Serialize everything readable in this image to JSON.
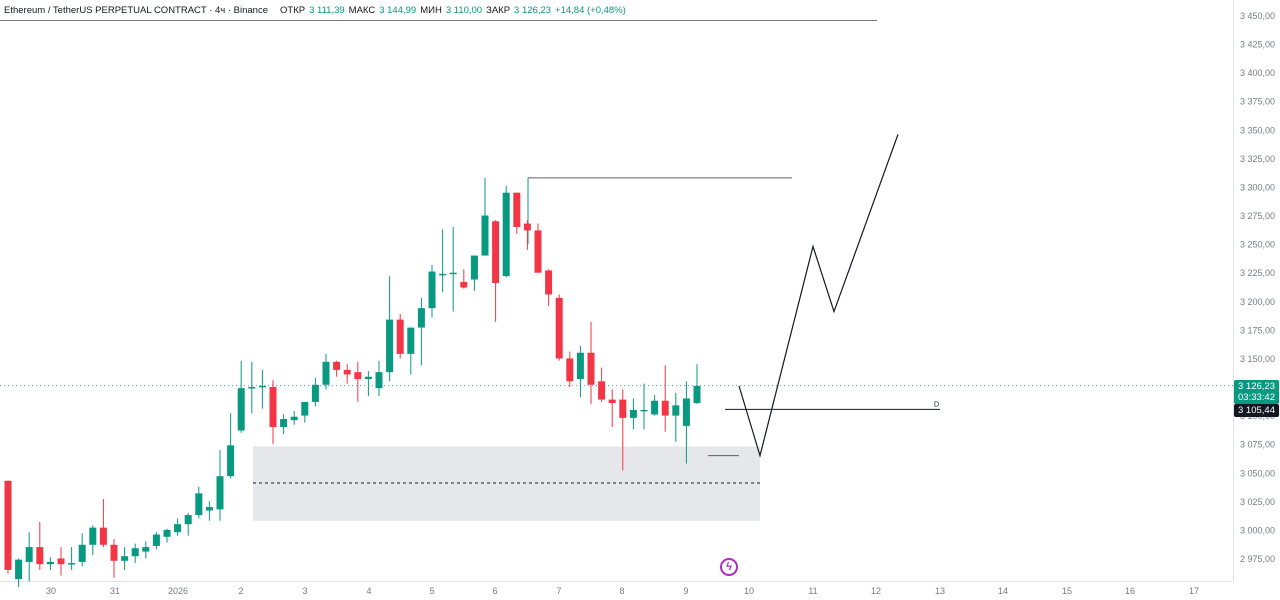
{
  "header": {
    "symbol": "Ethereum / TetherUS PERPETUAL CONTRACT · 4ч · Binance",
    "open_label": "ОТКР",
    "open_value": "3 111,39",
    "high_label": "МАКС",
    "high_value": "3 144,99",
    "low_label": "МИН",
    "low_value": "3 110,00",
    "close_label": "ЗАКР",
    "close_value": "3 126,23",
    "change": "+14,84 (+0,48%)"
  },
  "badges": {
    "last_price": "3 126,23",
    "countdown": "03:33:42",
    "level_price": "3 105,44"
  },
  "drawing": {
    "level_tag": "D"
  },
  "colors": {
    "up": "#089981",
    "down": "#f23645",
    "zone": "#e6e7ea",
    "badge_dark": "#131722",
    "flash": "#b02bc7"
  },
  "chart_data": {
    "type": "candlestick",
    "timeframe": "4h",
    "ylim": [
      2960,
      3460
    ],
    "y_ticks": [
      "3 450,00",
      "3 425,00",
      "3 400,00",
      "3 375,00",
      "3 350,00",
      "3 325,00",
      "3 300,00",
      "3 275,00",
      "3 250,00",
      "3 225,00",
      "3 200,00",
      "3 175,00",
      "3 150,00",
      "3 125,00",
      "3 100,00",
      "3 075,00",
      "3 050,00",
      "3 025,00",
      "3 000,00",
      "2 975,00"
    ],
    "x_ticks": [
      "30",
      "31",
      "2026",
      "2",
      "3",
      "4",
      "5",
      "6",
      "7",
      "8",
      "9",
      "10",
      "11",
      "12",
      "13",
      "14",
      "15",
      "16",
      "17"
    ],
    "candles": [
      [
        3043,
        3043,
        2962,
        2965
      ],
      [
        2957,
        2975,
        2950,
        2974
      ],
      [
        2972,
        2998,
        2955,
        2985
      ],
      [
        2985,
        3007,
        2965,
        2970
      ],
      [
        2970,
        2976,
        2965,
        2972
      ],
      [
        2975,
        2985,
        2960,
        2970
      ],
      [
        2970,
        2985,
        2965,
        2971
      ],
      [
        2972,
        2997,
        2968,
        2987
      ],
      [
        2987,
        3004,
        2978,
        3002
      ],
      [
        3002,
        3027,
        2985,
        2987
      ],
      [
        2987,
        2992,
        2958,
        2973
      ],
      [
        2973,
        2985,
        2965,
        2977
      ],
      [
        2977,
        2988,
        2971,
        2984
      ],
      [
        2981,
        2990,
        2975,
        2985
      ],
      [
        2986,
        2998,
        2983,
        2996
      ],
      [
        2994,
        3001,
        2989,
        3000
      ],
      [
        2998,
        3010,
        2995,
        3005
      ],
      [
        3005,
        3015,
        2995,
        3013
      ],
      [
        3013,
        3038,
        3010,
        3032
      ],
      [
        3017,
        3025,
        3008,
        3020
      ],
      [
        3018,
        3070,
        3008,
        3047
      ],
      [
        3047,
        3102,
        3045,
        3074
      ],
      [
        3087,
        3148,
        3085,
        3124
      ],
      [
        3124,
        3147,
        3102,
        3125
      ],
      [
        3125,
        3140,
        3106,
        3126
      ],
      [
        3125,
        3131,
        3075,
        3090
      ],
      [
        3090,
        3101,
        3084,
        3097
      ],
      [
        3096,
        3104,
        3092,
        3099
      ],
      [
        3100,
        3111,
        3094,
        3112
      ],
      [
        3112,
        3133,
        3108,
        3127
      ],
      [
        3127,
        3154,
        3123,
        3147
      ],
      [
        3147,
        3148,
        3134,
        3140
      ],
      [
        3140,
        3145,
        3128,
        3136
      ],
      [
        3138,
        3147,
        3112,
        3132
      ],
      [
        3132,
        3139,
        3117,
        3134
      ],
      [
        3124,
        3148,
        3117,
        3138
      ],
      [
        3138,
        3222,
        3130,
        3184
      ],
      [
        3184,
        3189,
        3150,
        3154
      ],
      [
        3154,
        3174,
        3136,
        3177
      ],
      [
        3177,
        3203,
        3144,
        3194
      ],
      [
        3194,
        3232,
        3186,
        3226
      ],
      [
        3223,
        3263,
        3208,
        3224
      ],
      [
        3224,
        3265,
        3191,
        3225
      ],
      [
        3217,
        3228,
        3211,
        3212
      ],
      [
        3219,
        3236,
        3209,
        3240
      ],
      [
        3240,
        3308,
        3240,
        3275
      ],
      [
        3270,
        3271,
        3182,
        3216
      ],
      [
        3222,
        3301,
        3221,
        3295
      ],
      [
        3295,
        3295,
        3259,
        3265
      ],
      [
        3268,
        3271,
        3245,
        3262
      ],
      [
        3262,
        3268,
        3226,
        3225
      ],
      [
        3227,
        3228,
        3196,
        3206
      ],
      [
        3203,
        3206,
        3148,
        3150
      ],
      [
        3150,
        3156,
        3125,
        3130
      ],
      [
        3132,
        3161,
        3116,
        3155
      ],
      [
        3155,
        3182,
        3110,
        3127
      ],
      [
        3130,
        3142,
        3112,
        3114
      ],
      [
        3114,
        3123,
        3090,
        3111
      ],
      [
        3114,
        3123,
        3052,
        3098
      ],
      [
        3098,
        3115,
        3088,
        3105
      ],
      [
        3105,
        3128,
        3088,
        3105
      ],
      [
        3101,
        3118,
        3100,
        3113
      ],
      [
        3113,
        3144,
        3086,
        3100
      ],
      [
        3100,
        3120,
        3077,
        3109
      ],
      [
        3091,
        3130,
        3058,
        3115
      ],
      [
        3111,
        3145,
        3110,
        3126
      ]
    ],
    "annotations": {
      "top_level": 3308,
      "d_level": 3105.44,
      "zone": [
        3008,
        3073
      ],
      "zone_mid": 3041,
      "small_level": 3065,
      "forecast_path": [
        3126,
        3065,
        3248,
        3191,
        3346
      ]
    }
  }
}
